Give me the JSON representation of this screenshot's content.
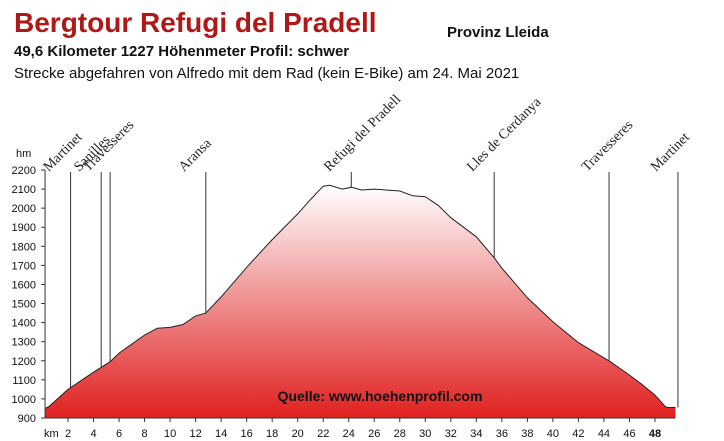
{
  "chart_data": {
    "type": "area",
    "title": "Bergtour Refugi del Pradell",
    "subtitle": "Provinz Lleida",
    "stats": "49,6 Kilometer  1227 Höhenmeter  Profil: schwer",
    "caption": "Strecke abgefahren von Alfredo mit dem Rad (kein E-Bike) am 24. Mai 2021",
    "source": "Quelle: www.hoehenprofil.com",
    "x_label": "km",
    "y_label": "hm",
    "color": "#e02020",
    "x": [
      0.2,
      0.5,
      2,
      4,
      5.3,
      6,
      8,
      9,
      10,
      11,
      12,
      12.8,
      14,
      16,
      18,
      20,
      21,
      22,
      22.5,
      23.5,
      24.2,
      25,
      26,
      28,
      29,
      30,
      31,
      32,
      34,
      35.4,
      36,
      38,
      40,
      42,
      44.5,
      46,
      47,
      48,
      48.8,
      49,
      49.6
    ],
    "values": [
      950,
      960,
      1050,
      1140,
      1195,
      1240,
      1335,
      1370,
      1375,
      1390,
      1435,
      1450,
      1535,
      1690,
      1835,
      1970,
      2045,
      2115,
      2120,
      2100,
      2110,
      2095,
      2100,
      2090,
      2065,
      2060,
      2015,
      1950,
      1850,
      1740,
      1685,
      1530,
      1405,
      1295,
      1195,
      1125,
      1075,
      1020,
      960,
      955,
      955
    ],
    "annotations": [
      {
        "label": "Martinet",
        "x": 2.2
      },
      {
        "label": "Sanilles",
        "x": 4.6
      },
      {
        "label": "Travesseres",
        "x": 5.3
      },
      {
        "label": "Aransa",
        "x": 12.8
      },
      {
        "label": "Refugi del Pradell",
        "x": 24.2
      },
      {
        "label": "Lles de Cerdanya",
        "x": 35.4
      },
      {
        "label": "Travesseres",
        "x": 44.4
      },
      {
        "label": "Martinet",
        "x": 49.8
      }
    ],
    "xlim": [
      0,
      50
    ],
    "ylim": [
      900,
      2200
    ],
    "xticks": [
      2,
      4,
      6,
      8,
      10,
      12,
      14,
      16,
      18,
      20,
      22,
      24,
      26,
      28,
      30,
      32,
      34,
      36,
      38,
      40,
      42,
      44,
      46,
      48
    ],
    "yticks": [
      900,
      1000,
      1100,
      1200,
      1300,
      1400,
      1500,
      1600,
      1700,
      1800,
      1900,
      2000,
      2100,
      2200
    ]
  }
}
